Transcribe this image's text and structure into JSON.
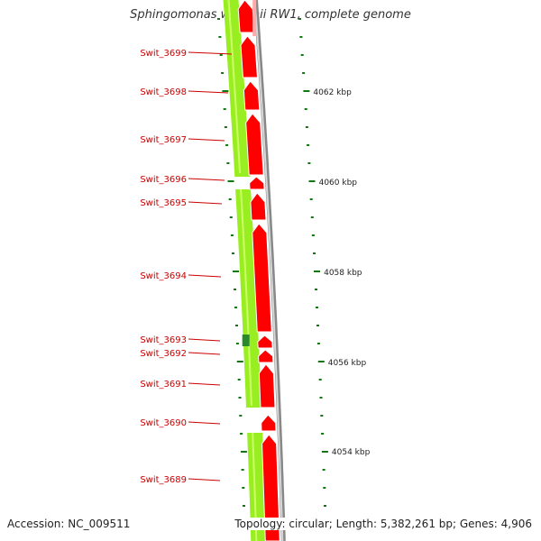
{
  "title": "Sphingomonas wittichii RW1, complete genome",
  "footer": {
    "accession": "Accession: NC_009511",
    "stats": "Topology: circular; Length: 5,382,261 bp; Genes: 4,906"
  },
  "colors": {
    "forward_track": "#99ee22",
    "reverse_track": "#ff0000",
    "label": "#cc0000",
    "tick": "#117711",
    "backbone": "#999999"
  },
  "genes": [
    {
      "label": "Swit_3699"
    },
    {
      "label": "Swit_3698"
    },
    {
      "label": "Swit_3697"
    },
    {
      "label": "Swit_3696"
    },
    {
      "label": "Swit_3695"
    },
    {
      "label": "Swit_3694"
    },
    {
      "label": "Swit_3693"
    },
    {
      "label": "Swit_3692"
    },
    {
      "label": "Swit_3691"
    },
    {
      "label": "Swit_3690"
    },
    {
      "label": "Swit_3689"
    }
  ],
  "scale": [
    {
      "label": "4062 kbp"
    },
    {
      "label": "4060 kbp"
    },
    {
      "label": "4058 kbp"
    },
    {
      "label": "4056 kbp"
    },
    {
      "label": "4054 kbp"
    }
  ]
}
